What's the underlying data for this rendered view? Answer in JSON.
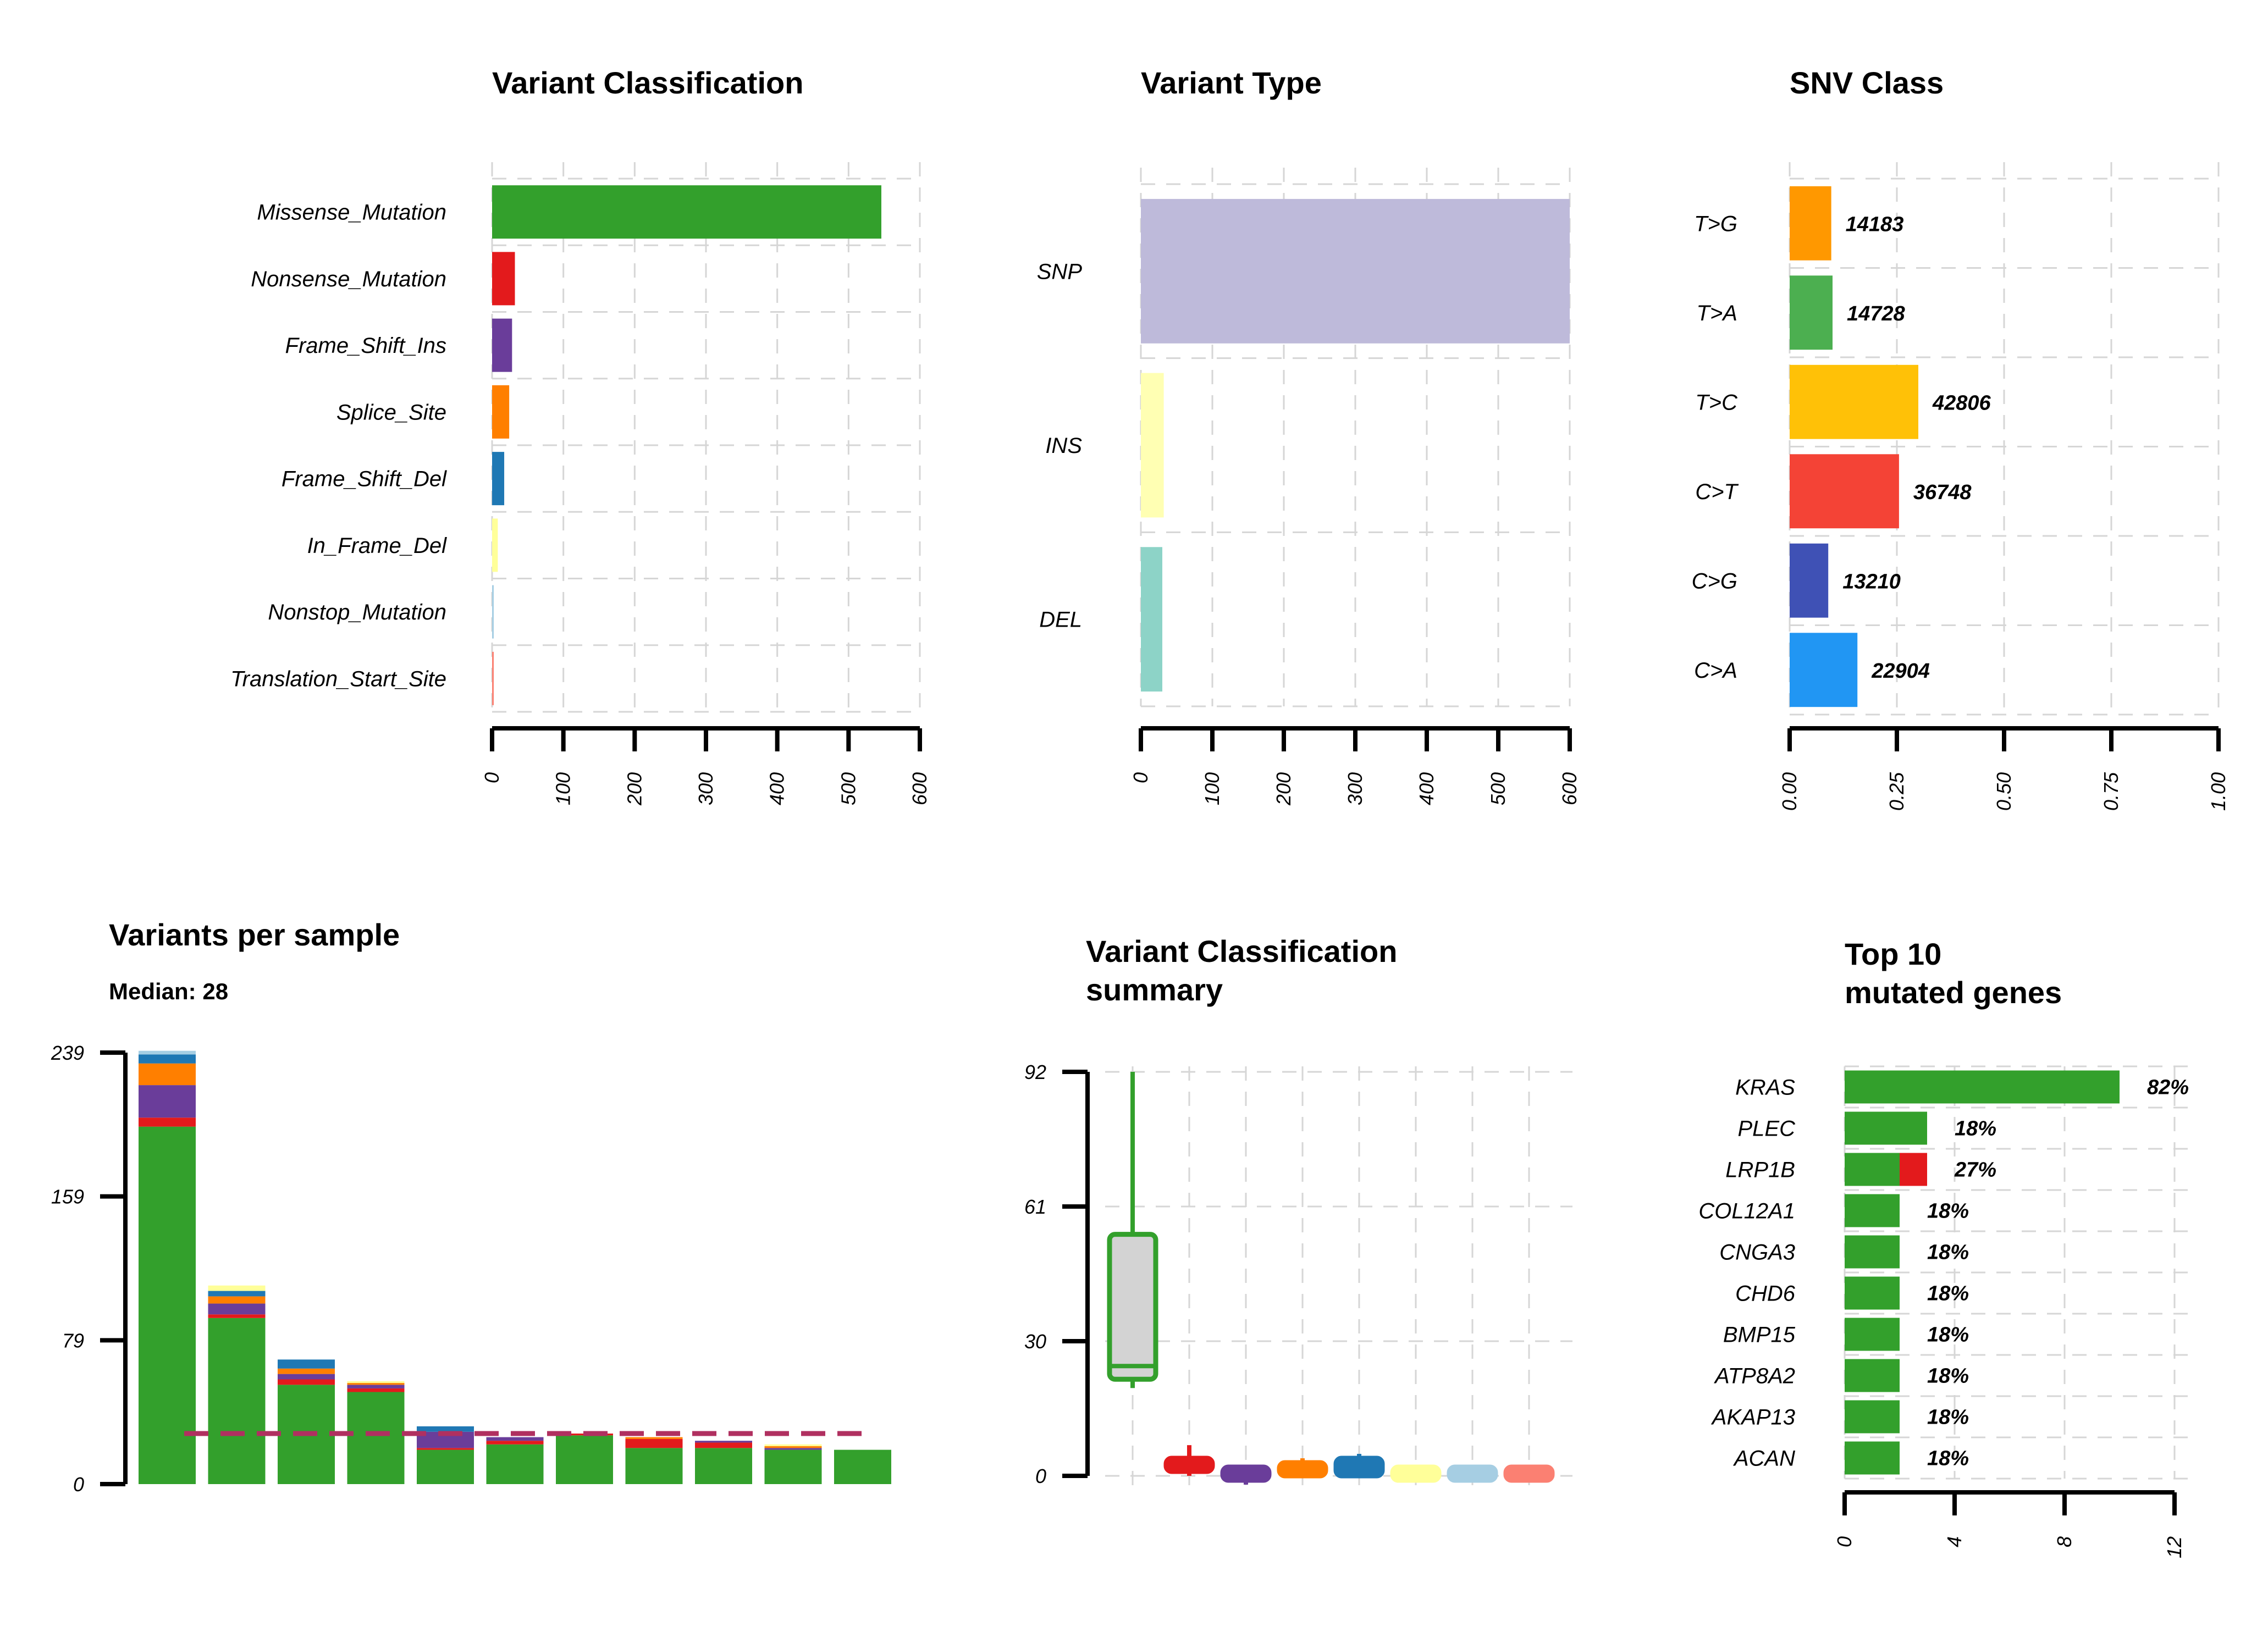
{
  "chart_data": [
    {
      "id": "vc",
      "type": "bar",
      "orientation": "horizontal",
      "title": "Variant Classification",
      "categories": [
        "Missense_Mutation",
        "Nonsense_Mutation",
        "Frame_Shift_Ins",
        "Splice_Site",
        "Frame_Shift_Del",
        "In_Frame_Del",
        "Nonstop_Mutation",
        "Translation_Start_Site"
      ],
      "values": [
        546,
        32,
        28,
        24,
        17,
        8,
        2,
        2
      ],
      "colors": [
        "#33a02c",
        "#e31a1c",
        "#6a3d9a",
        "#ff7f00",
        "#1f78b4",
        "#ffff99",
        "#a6cee3",
        "#fb8072"
      ],
      "xlim": [
        0,
        600
      ],
      "xticks": [
        "0",
        "100",
        "200",
        "300",
        "400",
        "500",
        "600"
      ],
      "grid": true
    },
    {
      "id": "vt",
      "type": "bar",
      "orientation": "horizontal",
      "title": "Variant Type",
      "categories": [
        "SNP",
        "INS",
        "DEL"
      ],
      "values": [
        600,
        32,
        30
      ],
      "colors": [
        "#bebada",
        "#ffffb3",
        "#8dd3c7"
      ],
      "xlim": [
        0,
        600
      ],
      "xticks": [
        "0",
        "100",
        "200",
        "300",
        "400",
        "500",
        "600"
      ],
      "grid": true
    },
    {
      "id": "snv",
      "type": "bar",
      "orientation": "horizontal",
      "title": "SNV Class",
      "categories": [
        "T>G",
        "T>A",
        "T>C",
        "C>T",
        "C>G",
        "C>A"
      ],
      "values": [
        0.097,
        0.1,
        0.3,
        0.255,
        0.09,
        0.158
      ],
      "labels": [
        "14183",
        "14728",
        "42806",
        "36748",
        "13210",
        "22904"
      ],
      "colors": [
        "#ff9800",
        "#4caf50",
        "#ffc107",
        "#f44336",
        "#3f51b5",
        "#2196f3"
      ],
      "xlim": [
        0,
        1
      ],
      "xticks": [
        "0.00",
        "0.25",
        "0.50",
        "0.75",
        "1.00"
      ],
      "grid": true
    },
    {
      "id": "vps",
      "type": "bar",
      "stacked": true,
      "title": "Variants per sample",
      "subtitle": "Median: 28",
      "ylim": [
        0,
        239
      ],
      "yticks": [
        "0",
        "79",
        "159",
        "239"
      ],
      "median": 28,
      "stack_colors": [
        "#33a02c",
        "#e31a1c",
        "#6a3d9a",
        "#ff7f00",
        "#1f78b4",
        "#ffff99",
        "#a6cee3"
      ],
      "samples": [
        [
          198,
          5,
          18,
          12,
          5,
          0,
          2
        ],
        [
          92,
          2,
          6,
          4,
          3,
          3,
          0
        ],
        [
          55,
          3,
          3,
          3,
          5,
          0,
          0
        ],
        [
          51,
          2,
          2,
          1,
          0,
          1,
          0
        ],
        [
          19,
          1,
          9,
          0,
          3,
          0,
          0
        ],
        [
          22,
          2,
          2,
          0,
          0,
          0,
          0
        ],
        [
          27,
          1,
          0,
          0,
          0,
          0,
          0
        ],
        [
          20,
          5,
          0,
          1,
          0,
          0,
          0
        ],
        [
          20,
          3,
          1,
          0,
          0,
          0,
          0
        ],
        [
          19,
          0,
          1,
          1,
          0,
          1,
          0
        ],
        [
          19,
          0,
          0,
          0,
          0,
          0,
          0
        ]
      ]
    },
    {
      "id": "vcs",
      "type": "box",
      "title": "Variant Classification",
      "title2": "summary",
      "ylim": [
        0,
        92
      ],
      "yticks": [
        "0",
        "30",
        "61",
        "92"
      ],
      "grid": true,
      "boxes": [
        {
          "color": "#33a02c",
          "fill": "#d3d3d3",
          "min": 20,
          "q1": 22,
          "median": 25,
          "q3": 55,
          "max": 92
        },
        {
          "color": "#e31a1c",
          "fill": "#e31a1c",
          "min": 0,
          "q1": 1,
          "median": 2,
          "q3": 4,
          "max": 7
        },
        {
          "color": "#6a3d9a",
          "fill": "#6a3d9a",
          "min": -2,
          "q1": -1,
          "median": 0.5,
          "q3": 2,
          "max": 2
        },
        {
          "color": "#ff7f00",
          "fill": "#ff7f00",
          "min": 0,
          "q1": 0,
          "median": 1,
          "q3": 3,
          "max": 4
        },
        {
          "color": "#1f78b4",
          "fill": "#1f78b4",
          "min": 0,
          "q1": 0,
          "median": 1,
          "q3": 4,
          "max": 5
        },
        {
          "color": "#ffff99",
          "fill": "#ffff99",
          "min": -1,
          "q1": -1,
          "median": 0.5,
          "q3": 2,
          "max": 2
        },
        {
          "color": "#a6cee3",
          "fill": "#a6cee3",
          "min": -1,
          "q1": -1,
          "median": 0.5,
          "q3": 2,
          "max": 2
        },
        {
          "color": "#fb8072",
          "fill": "#fb8072",
          "min": -1,
          "q1": -1,
          "median": 0.5,
          "q3": 2,
          "max": 2
        }
      ]
    },
    {
      "id": "top",
      "type": "bar",
      "orientation": "horizontal",
      "stacked": true,
      "title": "Top 10",
      "title2": "mutated genes",
      "categories": [
        "KRAS",
        "PLEC",
        "LRP1B",
        "COL12A1",
        "CNGA3",
        "CHD6",
        "BMP15",
        "ATP8A2",
        "AKAP13",
        "ACAN"
      ],
      "series": [
        {
          "color": "#33a02c",
          "values": [
            10,
            3,
            2,
            2,
            2,
            2,
            2,
            2,
            2,
            2
          ]
        },
        {
          "color": "#e31a1c",
          "values": [
            0,
            0,
            1,
            0,
            0,
            0,
            0,
            0,
            0,
            0
          ]
        }
      ],
      "labels": [
        "82%",
        "18%",
        "27%",
        "18%",
        "18%",
        "18%",
        "18%",
        "18%",
        "18%",
        "18%"
      ],
      "xlim": [
        0,
        12
      ],
      "xticks": [
        "0",
        "4",
        "8",
        "12"
      ],
      "grid": true
    }
  ]
}
